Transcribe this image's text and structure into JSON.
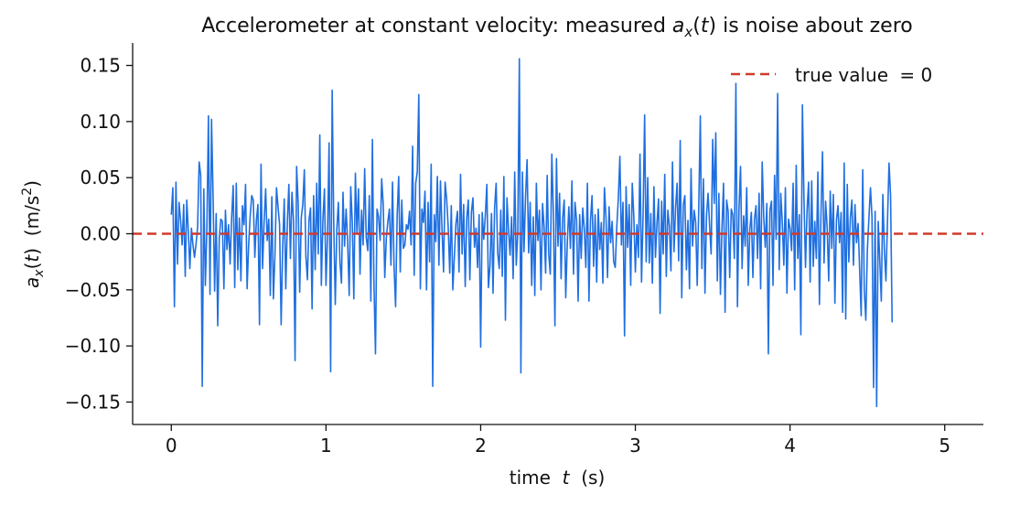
{
  "chart_data": {
    "type": "line",
    "title_parts": [
      "Accelerometer at constant velocity: measured ",
      "a",
      "x",
      "(",
      "t",
      ") is noise about zero"
    ],
    "xlabel_parts": [
      "time  ",
      "t",
      "  (s)"
    ],
    "ylabel_parts": [
      "a",
      "x",
      "(",
      "t",
      ")  (m/s",
      "2",
      ")"
    ],
    "xlim": [
      -0.25,
      5.25
    ],
    "ylim": [
      -0.17,
      0.17
    ],
    "xticks": [
      0,
      1,
      2,
      3,
      4,
      5
    ],
    "xtick_labels": [
      "0",
      "1",
      "2",
      "3",
      "4",
      "5"
    ],
    "yticks": [
      -0.15,
      -0.1,
      -0.05,
      0.0,
      0.05,
      0.1,
      0.15
    ],
    "ytick_labels": [
      "−0.15",
      "−0.10",
      "−0.05",
      "0.00",
      "0.05",
      "0.10",
      "0.15"
    ],
    "grid": false,
    "legend_placement": "top-right",
    "series": [
      {
        "kind": "measured",
        "color": "#1f6fe0",
        "x_start": 0,
        "x_step": 0.01,
        "values": [
          0.017,
          0.041,
          -0.065,
          0.046,
          -0.027,
          0.028,
          0.012,
          -0.01,
          0.026,
          -0.038,
          0.03,
          0.002,
          -0.031,
          0.005,
          -0.01,
          -0.021,
          -0.009,
          0.006,
          0.064,
          0.052,
          -0.136,
          0.04,
          -0.046,
          0.005,
          0.105,
          -0.054,
          0.102,
          0.034,
          -0.051,
          0.018,
          -0.082,
          -0.004,
          0.013,
          0.011,
          -0.049,
          0.021,
          -0.014,
          0.008,
          -0.027,
          0.014,
          0.043,
          -0.048,
          0.045,
          -0.032,
          0.014,
          -0.042,
          0.025,
          0.008,
          0.044,
          -0.049,
          -0.01,
          0.016,
          0.034,
          0.03,
          -0.021,
          0.012,
          0.026,
          -0.081,
          0.062,
          -0.031,
          0.011,
          0.04,
          -0.006,
          0.013,
          -0.055,
          0.033,
          -0.058,
          -0.019,
          0.041,
          0.024,
          0.008,
          -0.081,
          -0.012,
          0.031,
          -0.049,
          0.01,
          0.044,
          -0.022,
          0.037,
          0.012,
          -0.113,
          0.06,
          0.028,
          -0.052,
          0.014,
          0.026,
          0.057,
          -0.02,
          -0.041,
          0.012,
          0.023,
          -0.067,
          0.034,
          -0.032,
          0.045,
          -0.018,
          0.088,
          -0.046,
          0.012,
          0.04,
          -0.046,
          -0.001,
          0.081,
          -0.123,
          0.128,
          0.01,
          -0.063,
          0.004,
          0.028,
          -0.025,
          -0.044,
          0.037,
          -0.011,
          0.022,
          -0.007,
          -0.055,
          0.042,
          0.01,
          -0.058,
          0.054,
          0.001,
          0.04,
          -0.036,
          0.021,
          -0.01,
          0.058,
          -0.003,
          -0.015,
          0.034,
          -0.06,
          0.084,
          -0.044,
          -0.107,
          0.022,
          0.015,
          -0.006,
          0.049,
          0.026,
          -0.039,
          -0.004,
          0.011,
          0.022,
          -0.028,
          0.046,
          -0.029,
          -0.065,
          0.016,
          0.051,
          -0.034,
          0.03,
          -0.013,
          -0.01,
          0.008,
          0.004,
          0.02,
          -0.01,
          0.078,
          -0.037,
          0.045,
          0.055,
          0.124,
          -0.049,
          0.022,
          0.01,
          0.038,
          -0.05,
          0.028,
          -0.025,
          0.062,
          -0.136,
          0.017,
          -0.007,
          0.051,
          -0.028,
          0.047,
          0.005,
          -0.034,
          0.046,
          0.031,
          0.006,
          -0.035,
          0.025,
          -0.05,
          -0.02,
          0.009,
          0.02,
          -0.034,
          0.053,
          -0.018,
          0.026,
          -0.047,
          0.014,
          0.03,
          -0.041,
          0.019,
          0.032,
          -0.012,
          0.005,
          -0.03,
          0.017,
          -0.101,
          0.019,
          -0.005,
          0.016,
          0.044,
          -0.048,
          -0.029,
          0.018,
          -0.053,
          0.023,
          0.045,
          -0.017,
          -0.031,
          0.021,
          -0.038,
          0.051,
          -0.077,
          0.032,
          0.004,
          -0.019,
          0.015,
          -0.04,
          0.055,
          -0.028,
          0.001,
          0.156,
          -0.124,
          0.055,
          -0.016,
          0.032,
          0.066,
          -0.017,
          0.028,
          -0.046,
          0.015,
          -0.055,
          0.045,
          -0.006,
          0.021,
          -0.05,
          0.027,
          0.006,
          -0.035,
          0.052,
          -0.018,
          -0.036,
          0.071,
          0.018,
          -0.082,
          0.067,
          -0.011,
          0.036,
          -0.04,
          0.014,
          0.03,
          -0.057,
          -0.008,
          0.024,
          -0.013,
          0.047,
          -0.036,
          0.028,
          0.012,
          -0.06,
          0.017,
          -0.022,
          0.023,
          0.004,
          -0.03,
          0.045,
          -0.06,
          0.012,
          0.034,
          -0.029,
          0.017,
          -0.043,
          0.022,
          -0.014,
          0.01,
          -0.044,
          0.041,
          0.015,
          -0.039,
          0.024,
          -0.008,
          0.011,
          -0.025,
          -0.03,
          0.006,
          0.032,
          0.069,
          -0.01,
          0.028,
          -0.091,
          0.042,
          -0.012,
          0.026,
          -0.046,
          0.045,
          0.016,
          -0.034,
          0.008,
          -0.021,
          0.071,
          -0.043,
          0.017,
          0.106,
          -0.025,
          0.05,
          -0.026,
          0.018,
          -0.044,
          0.042,
          -0.021,
          0.01,
          0.031,
          -0.071,
          0.029,
          -0.018,
          0.053,
          -0.038,
          0.021,
          0.007,
          -0.033,
          0.064,
          -0.016,
          0.023,
          0.045,
          -0.024,
          0.083,
          -0.057,
          0.026,
          0.034,
          -0.032,
          0.012,
          -0.049,
          0.058,
          -0.011,
          0.021,
          0.01,
          -0.046,
          0.025,
          0.105,
          -0.031,
          0.049,
          -0.053,
          0.016,
          0.036,
          0.007,
          -0.018,
          0.084,
          0.027,
          0.09,
          -0.042,
          0.036,
          -0.054,
          0.005,
          0.045,
          -0.07,
          0.03,
          0.02,
          -0.039,
          0.022,
          0.017,
          -0.022,
          0.134,
          -0.065,
          0.022,
          0.06,
          -0.031,
          0.016,
          -0.011,
          0.041,
          -0.046,
          0.004,
          0.019,
          -0.039,
          0.013,
          0.025,
          -0.022,
          0.036,
          -0.049,
          0.064,
          0.015,
          -0.012,
          0.027,
          -0.107,
          0.021,
          0.029,
          -0.046,
          0.052,
          -0.005,
          0.125,
          -0.032,
          0.036,
          0.01,
          -0.028,
          0.041,
          -0.053,
          0.013,
          0.005,
          -0.015,
          0.045,
          -0.05,
          0.061,
          -0.022,
          0.017,
          -0.09,
          0.115,
          0.032,
          -0.03,
          0.021,
          0.046,
          -0.043,
          0.047,
          -0.029,
          0.011,
          -0.022,
          0.055,
          -0.063,
          0.017,
          0.073,
          -0.026,
          0.029,
          0.006,
          -0.042,
          0.038,
          -0.013,
          0.035,
          -0.062,
          0.012,
          0.025,
          -0.008,
          0.019,
          -0.07,
          0.063,
          -0.076,
          0.044,
          -0.025,
          0.014,
          0.03,
          -0.028,
          0.026,
          -0.008,
          0.009,
          -0.032,
          -0.073,
          0.057,
          -0.05,
          -0.077,
          -0.014,
          0.014,
          0.041,
          0.015,
          -0.137,
          0.02,
          -0.154,
          0.011,
          -0.023,
          -0.06,
          0.035,
          -0.015,
          -0.042,
          0.011,
          0.063,
          0.034,
          -0.079
        ]
      },
      {
        "kind": "reference",
        "color": "#d03a2c",
        "value": 0,
        "legend_prefix": "true value ",
        "legend_eq": "= 0"
      }
    ]
  }
}
